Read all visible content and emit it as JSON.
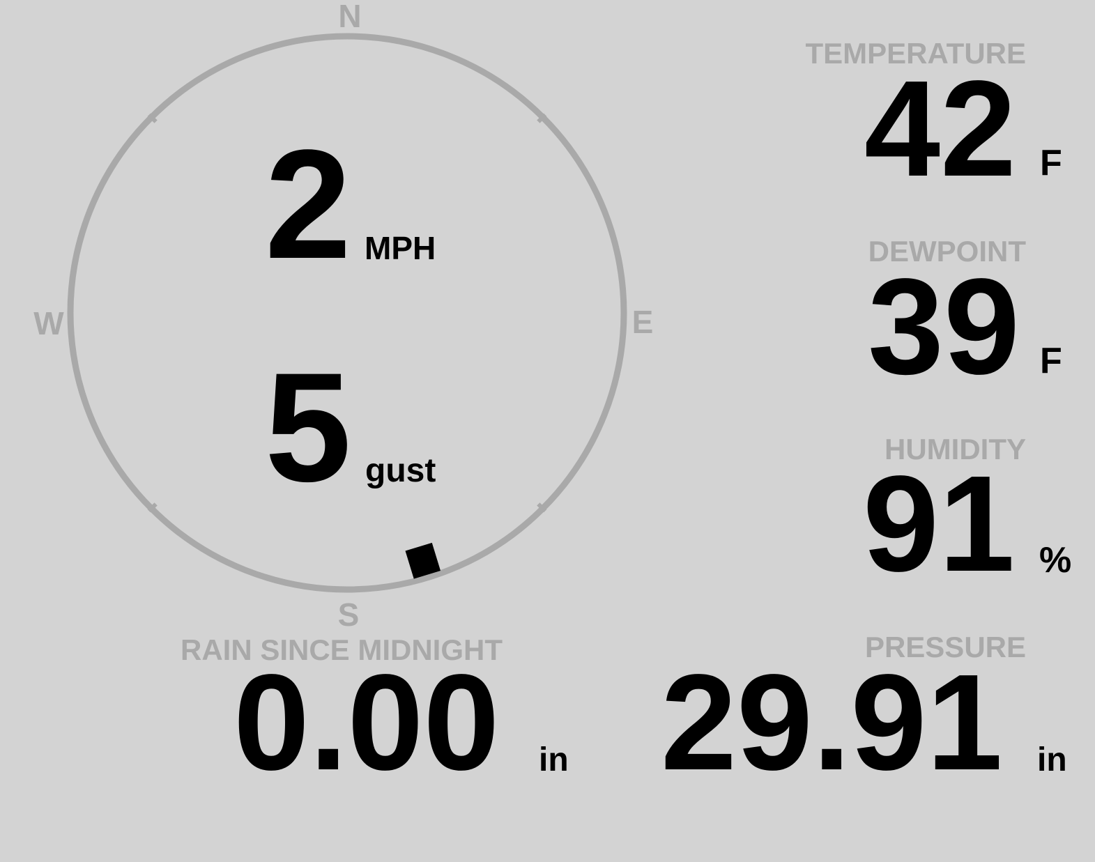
{
  "colors": {
    "background": "#d3d3d3",
    "label": "#a9a9a9",
    "value": "#000000",
    "compass_ring": "#a9a9a9"
  },
  "wind": {
    "speed": "2",
    "speed_unit": "MPH",
    "gust": "5",
    "gust_unit": "gust",
    "direction_degrees": 163,
    "cardinals": {
      "n": "N",
      "e": "E",
      "s": "S",
      "w": "W"
    }
  },
  "temperature": {
    "label": "TEMPERATURE",
    "value": "42",
    "unit": "F"
  },
  "dewpoint": {
    "label": "DEWPOINT",
    "value": "39",
    "unit": "F"
  },
  "humidity": {
    "label": "HUMIDITY",
    "value": "91",
    "unit": "%"
  },
  "pressure": {
    "label": "PRESSURE",
    "value": "29.91",
    "unit": "in"
  },
  "rain": {
    "label": "RAIN SINCE MIDNIGHT",
    "value": "0.00",
    "unit": "in"
  }
}
